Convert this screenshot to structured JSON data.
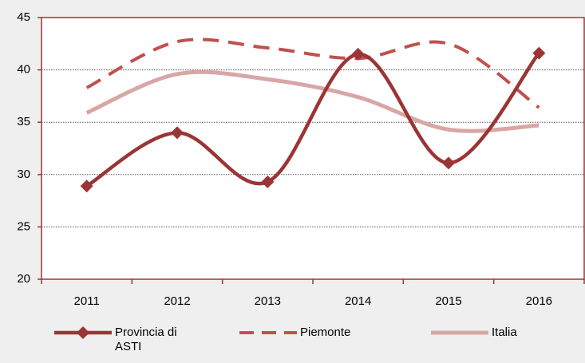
{
  "chart_data": {
    "type": "line",
    "categories": [
      "2011",
      "2012",
      "2013",
      "2014",
      "2015",
      "2016"
    ],
    "series": [
      {
        "name": "Provincia di ASTI",
        "color": "#9b3535",
        "values": [
          28.9,
          34.0,
          29.3,
          41.5,
          31.1,
          41.6
        ]
      },
      {
        "name": "Piemonte",
        "color": "#c0504d",
        "values": [
          38.3,
          42.7,
          42.1,
          41.1,
          42.5,
          36.4
        ]
      },
      {
        "name": "Italia",
        "color": "#d9a6a6",
        "values": [
          35.9,
          39.6,
          39.1,
          37.4,
          34.3,
          34.7
        ]
      }
    ],
    "ylim": [
      20,
      45
    ],
    "yticks": [
      20,
      25,
      30,
      35,
      40,
      45
    ],
    "grid": true
  }
}
